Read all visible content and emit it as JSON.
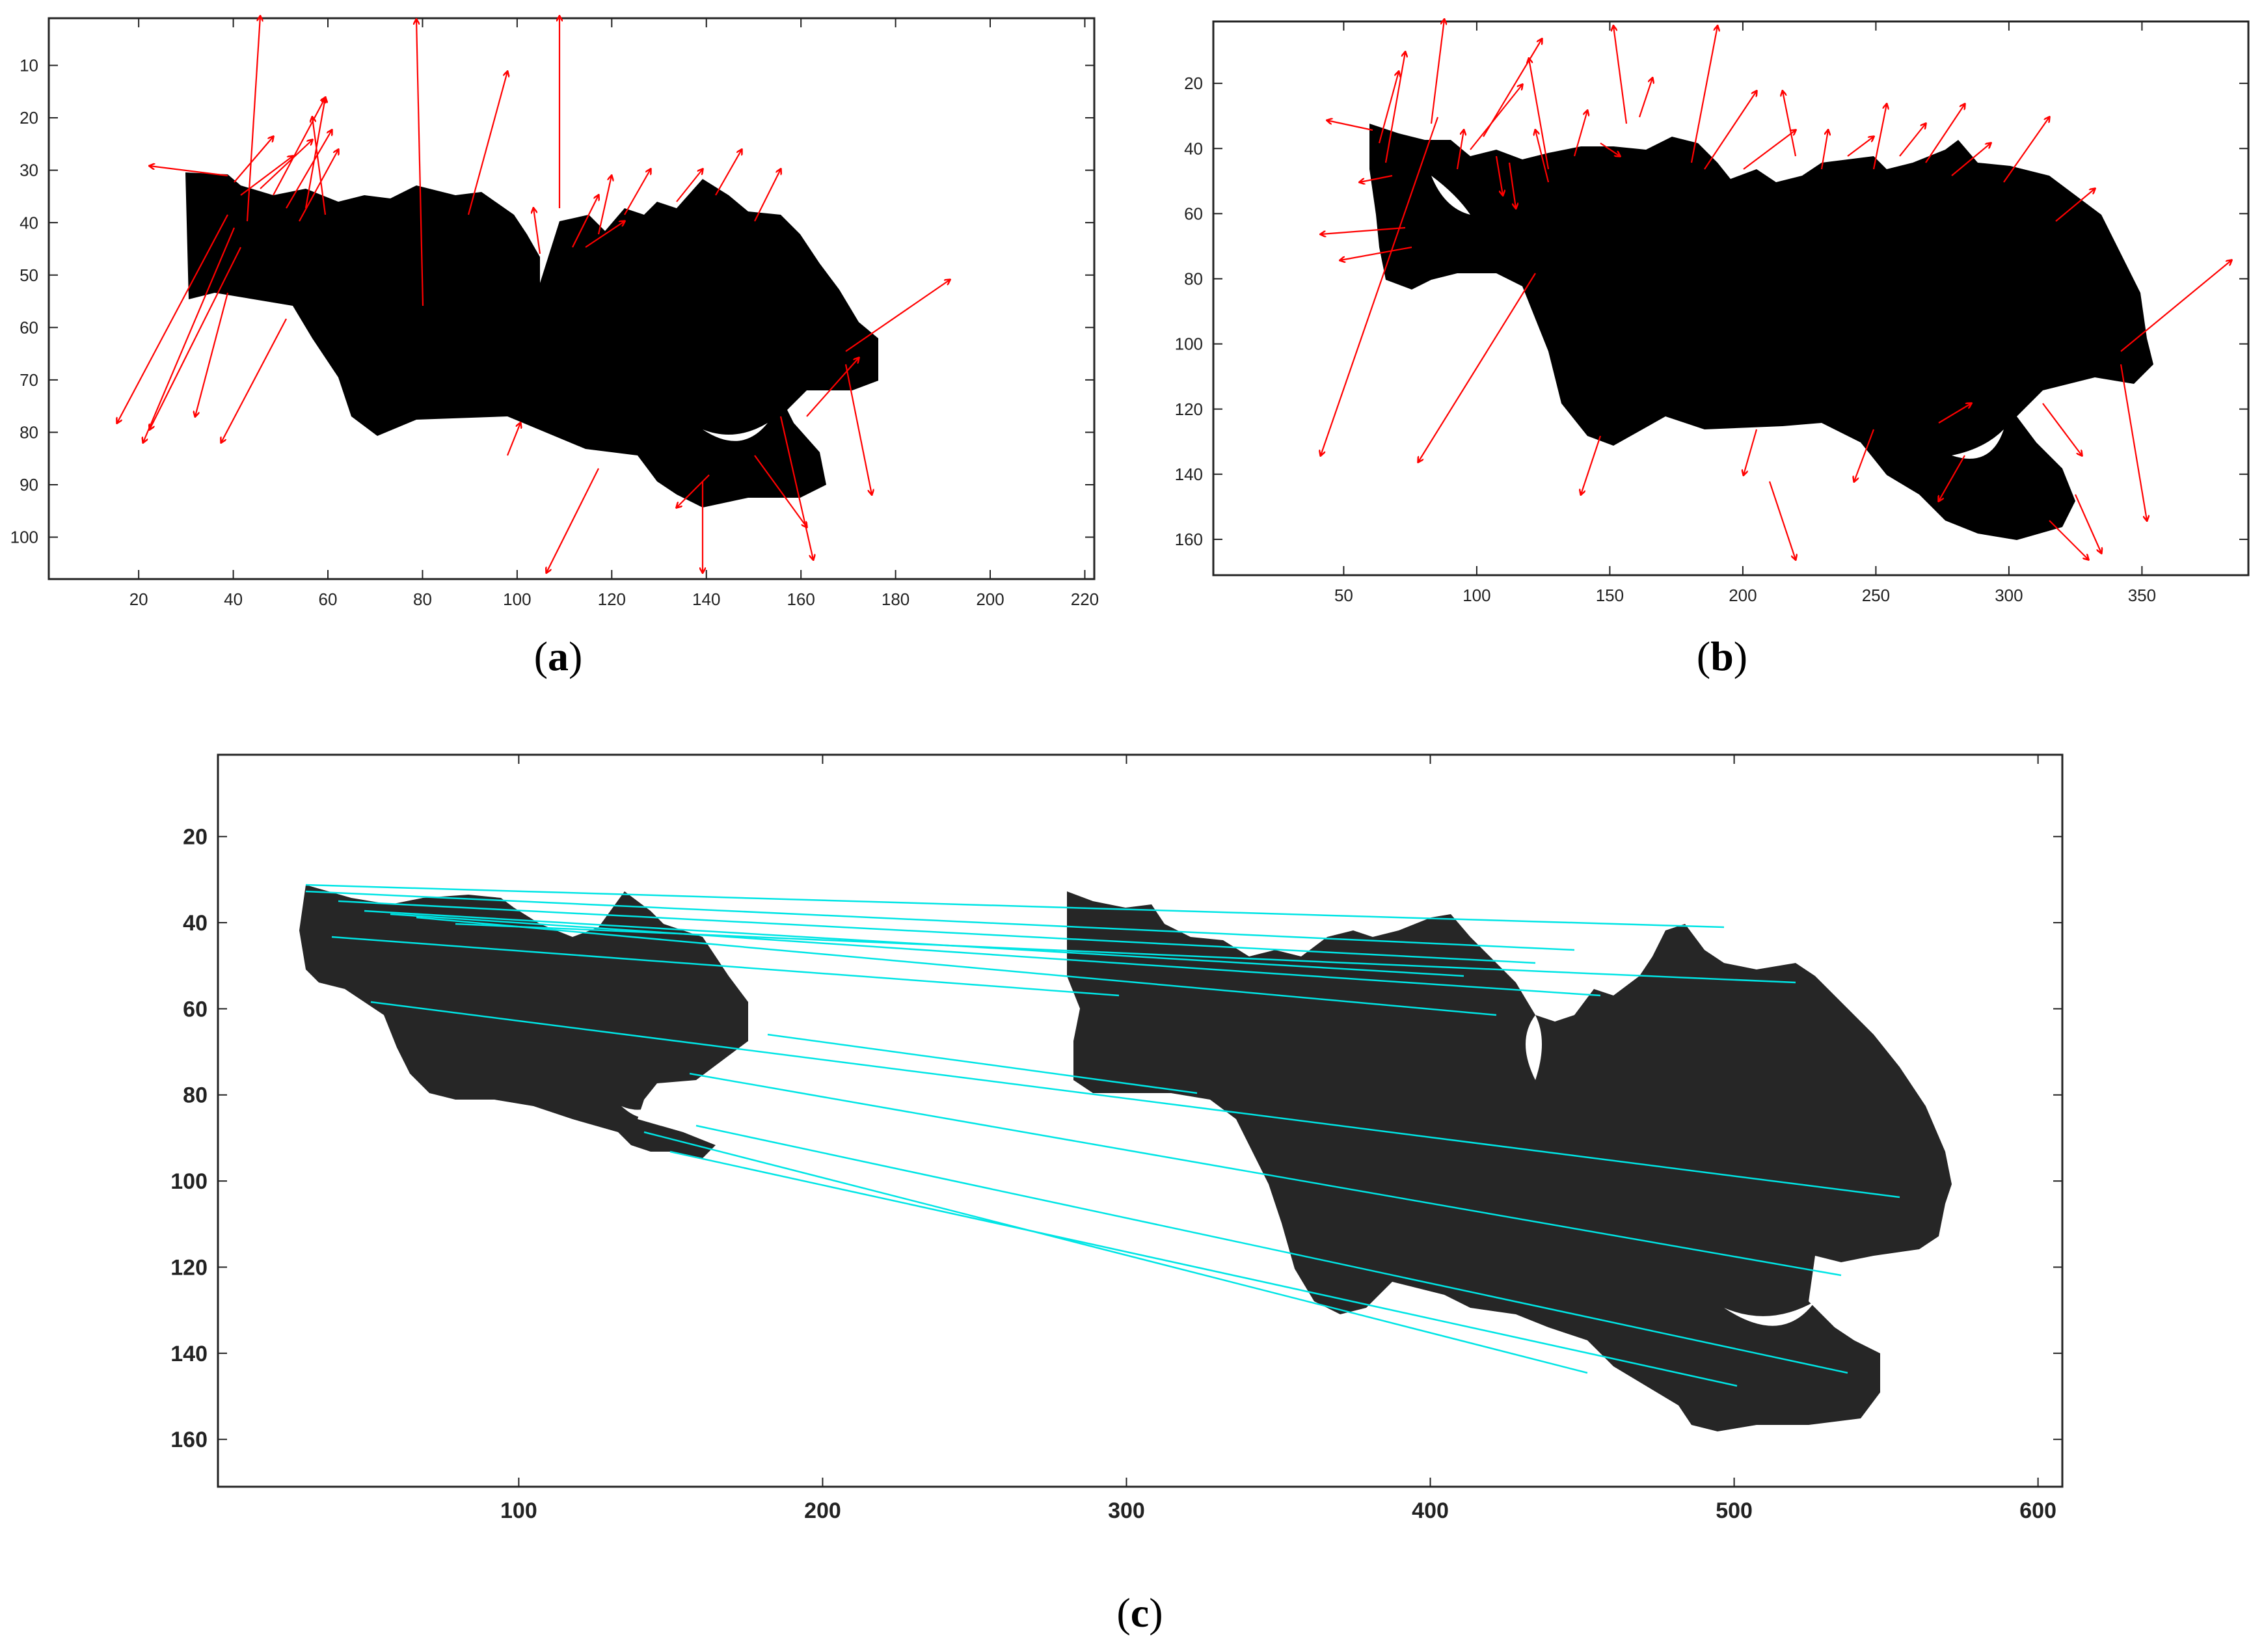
{
  "panels": [
    {
      "id": "a",
      "caption_letter": "a",
      "xticks": [
        20,
        40,
        60,
        80,
        100,
        120,
        140,
        160,
        180,
        200,
        220
      ],
      "yticks": [
        10,
        20,
        30,
        40,
        50,
        60,
        70,
        80,
        90,
        100
      ],
      "xlim": [
        1,
        222
      ],
      "ylim": [
        1,
        108
      ],
      "arrow_color": "#ff0000",
      "shape_color": "#000000"
    },
    {
      "id": "b",
      "caption_letter": "b",
      "xticks": [
        50,
        100,
        150,
        200,
        250,
        300,
        350
      ],
      "yticks": [
        20,
        40,
        60,
        80,
        100,
        120,
        140,
        160
      ],
      "xlim": [
        1,
        390
      ],
      "ylim": [
        1,
        171
      ],
      "arrow_color": "#ff0000",
      "shape_color": "#000000"
    },
    {
      "id": "c",
      "caption_letter": "c",
      "xticks": [
        100,
        200,
        300,
        400,
        500,
        600
      ],
      "yticks": [
        20,
        40,
        60,
        80,
        100,
        120,
        140,
        160
      ],
      "xlim": [
        1,
        608
      ],
      "ylim": [
        1,
        171
      ],
      "line_color": "#00e5e5",
      "shape_color": "#262626"
    }
  ]
}
